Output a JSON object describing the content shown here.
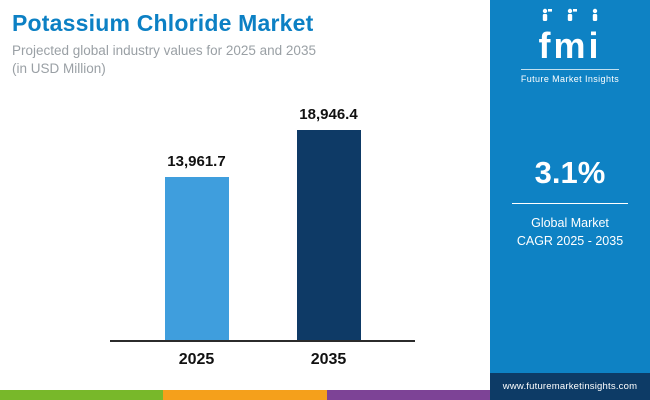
{
  "header": {
    "title": "Potassium Chloride Market",
    "subtitle_line1": "Projected global industry values for 2025 and 2035",
    "subtitle_line2": "(in USD Million)"
  },
  "chart_data": {
    "type": "bar",
    "title": "Potassium Chloride Market",
    "subtitle": "Projected global industry values for 2025 and 2035 (in USD Million)",
    "categories": [
      "2025",
      "2035"
    ],
    "values": [
      13961.7,
      18946.4
    ],
    "value_labels": [
      "13,961.7",
      "18,946.4"
    ],
    "xlabel": "",
    "ylabel": "USD Million",
    "ylim": [
      0,
      20000
    ],
    "grid": false,
    "legend": "none",
    "bar_colors": [
      "#3f9edd",
      "#0e3a66"
    ]
  },
  "sidebar": {
    "logo": {
      "text": "fmi",
      "tagline": "Future Market Insights"
    },
    "cagr": {
      "value": "3.1%",
      "label_line1": "Global Market",
      "label_line2": "CAGR 2025 - 2035"
    },
    "footer_url": "www.futuremarketinsights.com"
  },
  "colors": {
    "title_blue": "#0c80c4",
    "panel_blue": "#0e82c4",
    "footer_navy": "#0d3b66",
    "bar_light": "#3f9edd",
    "bar_dark": "#0e3a66",
    "stripes": [
      "#78b82a",
      "#f5a01b",
      "#7d4396"
    ]
  }
}
